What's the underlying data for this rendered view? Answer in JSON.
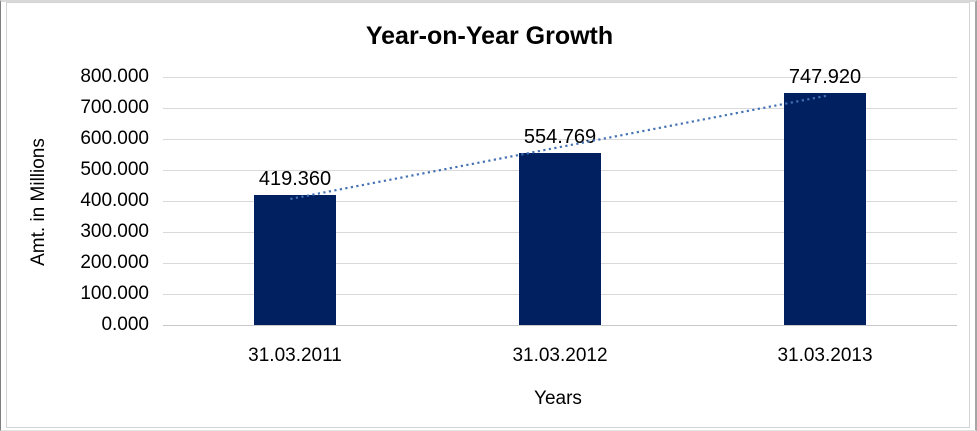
{
  "chart": {
    "title": "Year-on-Year Growth",
    "x_axis_title": "Years",
    "y_axis_title": "Amt. in Millions"
  },
  "chart_data": {
    "type": "bar",
    "title": "Year-on-Year Growth",
    "xlabel": "Years",
    "ylabel": "Amt. in Millions",
    "categories": [
      "31.03.2011",
      "31.03.2012",
      "31.03.2013"
    ],
    "values": [
      419.36,
      554.769,
      747.92
    ],
    "value_labels": [
      "419.360",
      "554.769",
      "747.920"
    ],
    "ylim": [
      0,
      800
    ],
    "ytick_step": 100,
    "ytick_labels": [
      "0.000",
      "100.000",
      "200.000",
      "300.000",
      "400.000",
      "500.000",
      "600.000",
      "700.000",
      "800.000"
    ],
    "grid": true,
    "legend": false,
    "trendline": {
      "type": "linear",
      "style": "dotted"
    },
    "colors": {
      "bar": "#002060",
      "trendline": "#4472B4",
      "gridline": "#D9D9D9",
      "frame": "#D3D3D3",
      "text": "#000000"
    }
  }
}
